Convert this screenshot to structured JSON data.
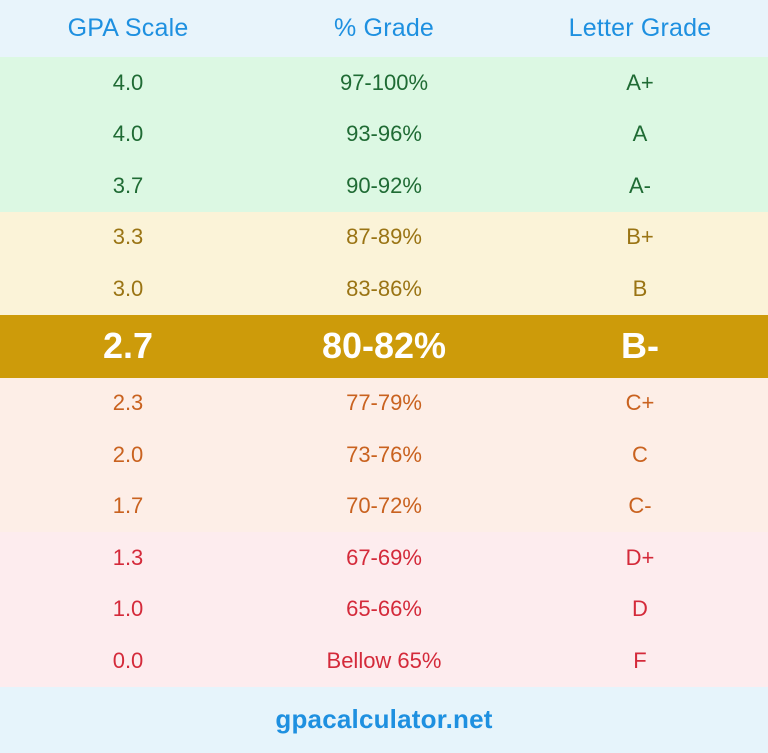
{
  "header": {
    "col1": "GPA Scale",
    "col2": "% Grade",
    "col3": "Letter Grade"
  },
  "rows": [
    {
      "gpa": "4.0",
      "percent": "97-100%",
      "letter": "A+",
      "group": "green"
    },
    {
      "gpa": "4.0",
      "percent": "93-96%",
      "letter": "A",
      "group": "green"
    },
    {
      "gpa": "3.7",
      "percent": "90-92%",
      "letter": "A-",
      "group": "green"
    },
    {
      "gpa": "3.3",
      "percent": "87-89%",
      "letter": "B+",
      "group": "yellow"
    },
    {
      "gpa": "3.0",
      "percent": "83-86%",
      "letter": "B",
      "group": "yellow"
    },
    {
      "gpa": "2.7",
      "percent": "80-82%",
      "letter": "B-",
      "group": "highlight"
    },
    {
      "gpa": "2.3",
      "percent": "77-79%",
      "letter": "C+",
      "group": "orange"
    },
    {
      "gpa": "2.0",
      "percent": "73-76%",
      "letter": "C",
      "group": "orange"
    },
    {
      "gpa": "1.7",
      "percent": "70-72%",
      "letter": "C-",
      "group": "orange"
    },
    {
      "gpa": "1.3",
      "percent": "67-69%",
      "letter": "D+",
      "group": "red"
    },
    {
      "gpa": "1.0",
      "percent": "65-66%",
      "letter": "D",
      "group": "red"
    },
    {
      "gpa": "0.0",
      "percent": "Bellow 65%",
      "letter": "F",
      "group": "red"
    }
  ],
  "footer": {
    "site": "gpacalculator.net"
  },
  "colors": {
    "header_text": "#1e90e0",
    "green_bg": "#dcf8e3",
    "green_text": "#1f6b34",
    "yellow_bg": "#fbf3d8",
    "yellow_text": "#9a7414",
    "highlight_bg": "#cd9b0a",
    "orange_bg": "#fdeee7",
    "orange_text": "#c9621f",
    "red_bg": "#fdecee",
    "red_text": "#d42a3a"
  }
}
